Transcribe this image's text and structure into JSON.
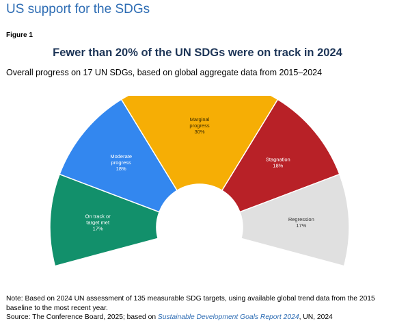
{
  "page": {
    "heading": "US support for the SDGs",
    "figure_label": "Figure 1"
  },
  "chart_data": {
    "type": "pie",
    "variant": "semicircle-donut",
    "title": "Fewer than 20% of the UN SDGs were on track in 2024",
    "subtitle": "Overall progress on 17 UN SDGs, based on global aggregate data from 2015–2024",
    "slices": [
      {
        "name": "On track or target met",
        "label_lines": [
          "On track or",
          "target met"
        ],
        "percent_label": "17%",
        "value": 17,
        "color": "#12906b",
        "text_color": "#ffffff"
      },
      {
        "name": "Moderate progress",
        "label_lines": [
          "Moderate",
          "progress"
        ],
        "percent_label": "18%",
        "value": 18,
        "color": "#3387ef",
        "text_color": "#ffffff"
      },
      {
        "name": "Marginal progress",
        "label_lines": [
          "Marginal",
          "progress"
        ],
        "percent_label": "30%",
        "value": 30,
        "color": "#f6ae05",
        "text_color": "#3a2a00"
      },
      {
        "name": "Stagnation",
        "label_lines": [
          "Stagnation"
        ],
        "percent_label": "18%",
        "value": 18,
        "color": "#b82127",
        "text_color": "#ffffff"
      },
      {
        "name": "Regression",
        "label_lines": [
          "Regression"
        ],
        "percent_label": "17%",
        "value": 17,
        "color": "#e0e0e0",
        "text_color": "#333333"
      }
    ]
  },
  "notes": {
    "note": "Note: Based on 2024 UN assessment of 135 measurable SDG targets, using available global trend data from the 2015 baseline to the most recent year.",
    "source_prefix": "Source: The Conference Board, 2025; based on ",
    "source_link": "Sustainable Development Goals Report 2024",
    "source_suffix": ", UN, 2024"
  }
}
